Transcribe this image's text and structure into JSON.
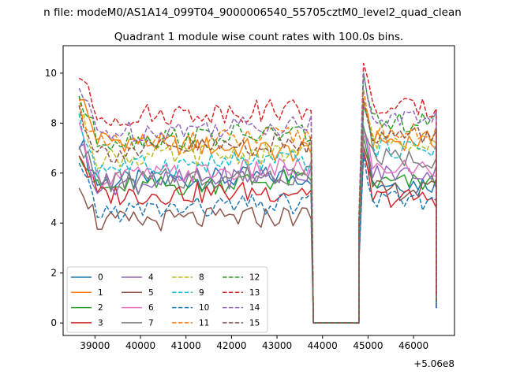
{
  "figure": {
    "suptitle": "n file: modeM0/AS1A14_099T04_9000006540_55705cztM0_level2_quad_clean",
    "title": "Quadrant 1 module wise count rates with 100.0s bins.",
    "x_offset_label": "+5.06e8"
  },
  "chart_data": {
    "type": "line",
    "title": "Quadrant 1 module wise count rates with 100.0s bins.",
    "xlabel": "",
    "ylabel": "",
    "x_offset": 506000000,
    "xlim": [
      38300,
      46900
    ],
    "ylim": [
      -0.5,
      11.1
    ],
    "x_ticks": [
      39000,
      40000,
      41000,
      42000,
      43000,
      44000,
      45000,
      46000
    ],
    "y_ticks": [
      0,
      2,
      4,
      6,
      8,
      10
    ],
    "grid": false,
    "legend": {
      "placement": "lower-left",
      "columns": 4
    },
    "segments": [
      {
        "x_start": 38650,
        "x_end": 43750,
        "step": 100
      },
      {
        "x_start": 43800,
        "x_end": 44750,
        "step": 100,
        "gap": true
      },
      {
        "x_start": 44800,
        "x_end": 46450,
        "step": 100
      },
      {
        "x_start": 46500,
        "x_end": 46500,
        "step": 100,
        "drop": true
      }
    ],
    "series": [
      {
        "name": "0",
        "color": "#1f77b4",
        "dash": "solid",
        "level": 5.6,
        "end_level": 5.9,
        "second_level": 5.6,
        "end": 0.8
      },
      {
        "name": "1",
        "color": "#ff7f0e",
        "dash": "solid",
        "level": 7.4,
        "end_level": 6.8,
        "second_level": 7.3,
        "end": 0.9
      },
      {
        "name": "2",
        "color": "#2ca02c",
        "dash": "solid",
        "level": 5.3,
        "end_level": 5.8,
        "second_level": 5.6,
        "end": 0.7
      },
      {
        "name": "3",
        "color": "#d62728",
        "dash": "solid",
        "level": 5.1,
        "end_level": 5.3,
        "second_level": 5.0,
        "end": 0.6
      },
      {
        "name": "4",
        "color": "#9467bd",
        "dash": "solid",
        "level": 5.5,
        "end_level": 6.0,
        "second_level": 6.0,
        "end": 0.8
      },
      {
        "name": "5",
        "color": "#8c564b",
        "dash": "solid",
        "level": 4.0,
        "end_level": 4.3,
        "second_level": 5.3,
        "end": 0.6
      },
      {
        "name": "6",
        "color": "#e377c2",
        "dash": "solid",
        "level": 5.8,
        "end_level": 6.2,
        "second_level": 6.2,
        "end": 0.8
      },
      {
        "name": "7",
        "color": "#7f7f7f",
        "dash": "solid",
        "level": 5.6,
        "end_level": 6.0,
        "second_level": 6.6,
        "end": 0.8
      },
      {
        "name": "8",
        "color": "#bcbd22",
        "dash": "dashed",
        "level": 6.6,
        "end_level": 6.8,
        "second_level": 7.3,
        "end": 0.9
      },
      {
        "name": "9",
        "color": "#17becf",
        "dash": "dashed",
        "level": 6.2,
        "end_level": 6.5,
        "second_level": 7.0,
        "end": 0.8
      },
      {
        "name": "10",
        "color": "#1f77b4",
        "dash": "dashed",
        "level": 4.4,
        "end_level": 4.8,
        "second_level": 4.9,
        "end": 0.6
      },
      {
        "name": "11",
        "color": "#ff7f0e",
        "dash": "dashed",
        "level": 7.0,
        "end_level": 7.5,
        "second_level": 7.6,
        "end": 1.0
      },
      {
        "name": "12",
        "color": "#2ca02c",
        "dash": "dashed",
        "level": 7.3,
        "end_level": 7.6,
        "second_level": 8.0,
        "end": 1.0
      },
      {
        "name": "13",
        "color": "#d62728",
        "dash": "dashed",
        "level": 8.2,
        "end_level": 8.6,
        "second_level": 8.6,
        "end": 1.1
      },
      {
        "name": "14",
        "color": "#9467bd",
        "dash": "dashed",
        "level": 7.6,
        "end_level": 8.0,
        "second_level": 8.2,
        "end": 1.0
      },
      {
        "name": "15",
        "color": "#8c564b",
        "dash": "dashed",
        "level": 6.8,
        "end_level": 7.2,
        "second_level": 7.5,
        "end": 0.9
      }
    ]
  }
}
